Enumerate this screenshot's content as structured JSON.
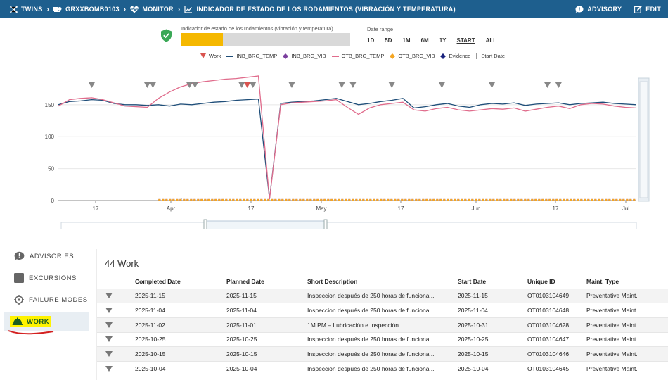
{
  "breadcrumb": [
    {
      "label": "TWINS",
      "icon": "network-icon"
    },
    {
      "label": "GRXXBOMB0103",
      "icon": "pump-icon"
    },
    {
      "label": "MONITOR",
      "icon": "heart-pulse-icon"
    },
    {
      "label": "INDICADOR DE ESTADO DE LOS RODAMIENTOS (VIBRACIÓN Y TEMPERATURA)",
      "icon": "line-chart-icon"
    }
  ],
  "top_actions": {
    "advisory": "ADVISORY",
    "edit": "EDIT"
  },
  "indicator": {
    "label": "Indicador de estado de los rodamientos (vibración y temperatura)",
    "fill_fraction": 0.25,
    "color": "#f5b800",
    "status_icon": "check-shield-icon"
  },
  "date_range": {
    "label": "Date range",
    "options": [
      "1D",
      "5D",
      "1M",
      "6M",
      "1Y",
      "START",
      "ALL"
    ],
    "selected": "START"
  },
  "legend": [
    {
      "name": "Work",
      "color": "#d9534f",
      "marker": "triangle-down"
    },
    {
      "name": "INB_BRG_TEMP",
      "color": "#1f4e79",
      "marker": "line"
    },
    {
      "name": "INB_BRG_VIB",
      "color": "#7b3f9e",
      "marker": "diamond"
    },
    {
      "name": "OTB_BRG_TEMP",
      "color": "#e06c8c",
      "marker": "line"
    },
    {
      "name": "OTB_BRG_VIB",
      "color": "#f5a623",
      "marker": "diamond"
    },
    {
      "name": "Evidence",
      "color": "#1a237e",
      "marker": "diamond"
    },
    {
      "name": "Start Date",
      "color": "#999999",
      "marker": "bar"
    }
  ],
  "chart_data": {
    "type": "line",
    "yticks": [
      0,
      50,
      100,
      150
    ],
    "ylim": [
      0,
      195
    ],
    "xticks": [
      "17",
      "Apr",
      "17",
      "May",
      "17",
      "Jun",
      "17",
      "Jul"
    ],
    "series": [
      {
        "name": "INB_BRG_TEMP",
        "color": "#1f4e79",
        "values": [
          150,
          155,
          156,
          158,
          157,
          152,
          150,
          150,
          149,
          150,
          148,
          151,
          150,
          152,
          154,
          155,
          157,
          158,
          159,
          3,
          152,
          154,
          155,
          156,
          158,
          160,
          155,
          150,
          152,
          155,
          157,
          160,
          145,
          147,
          150,
          152,
          148,
          146,
          150,
          152,
          151,
          153,
          149,
          151,
          152,
          153,
          150,
          152,
          153,
          154,
          152,
          151,
          150
        ]
      },
      {
        "name": "OTB_BRG_TEMP",
        "color": "#e06c8c",
        "values": [
          148,
          158,
          160,
          161,
          158,
          153,
          148,
          147,
          146,
          160,
          170,
          178,
          183,
          186,
          188,
          190,
          191,
          193,
          195,
          2,
          150,
          153,
          154,
          155,
          156,
          158,
          146,
          135,
          145,
          150,
          152,
          154,
          142,
          140,
          144,
          146,
          142,
          140,
          142,
          144,
          143,
          145,
          140,
          143,
          146,
          148,
          144,
          150,
          152,
          151,
          148,
          146,
          145
        ]
      },
      {
        "name": "INB_BRG_VIB",
        "color": "#7b3f9e",
        "values": [
          null,
          null,
          null,
          null,
          null,
          null,
          null,
          null,
          null,
          1,
          1,
          1,
          1,
          1,
          1,
          1,
          1,
          1,
          1,
          1,
          1,
          1,
          1,
          1,
          1,
          1,
          1,
          1,
          1,
          1,
          1,
          1,
          1,
          1,
          1,
          1,
          1,
          1,
          1,
          1,
          1,
          1,
          1,
          1,
          1,
          1,
          1,
          1,
          1,
          1,
          1,
          1,
          1
        ]
      },
      {
        "name": "OTB_BRG_VIB",
        "color": "#f5a623",
        "values": [
          null,
          null,
          null,
          null,
          null,
          null,
          null,
          null,
          null,
          1,
          1,
          1,
          1,
          1,
          1,
          1,
          1,
          1,
          1,
          1,
          1,
          1,
          1,
          1,
          1,
          1,
          1,
          1,
          1,
          1,
          1,
          1,
          1,
          1,
          1,
          1,
          1,
          1,
          1,
          1,
          1,
          1,
          1,
          1,
          1,
          1,
          1,
          1,
          1,
          1,
          1,
          1,
          1
        ]
      }
    ],
    "work_markers": [
      3,
      8,
      8.5,
      11.8,
      12.3,
      16.5,
      17,
      17.5,
      21,
      25.5,
      26.5,
      30,
      34.5,
      39,
      44,
      45
    ]
  },
  "sidenav": [
    {
      "label": "ADVISORIES",
      "icon": "advisory-icon"
    },
    {
      "label": "EXCURSIONS",
      "icon": "excursion-icon"
    },
    {
      "label": "FAILURE MODES",
      "icon": "crosshair-icon"
    },
    {
      "label": "WORK",
      "icon": "hard-hat-icon",
      "active": true
    }
  ],
  "work": {
    "title": "44 Work",
    "columns": [
      "Completed Date",
      "Planned Date",
      "Short Description",
      "Start Date",
      "Unique ID",
      "Maint. Type"
    ],
    "rows": [
      [
        "2025-11-15",
        "2025-11-15",
        "Inspeccion después de 250 horas de funciona...",
        "2025-11-15",
        "OT0103104649",
        "Preventative Maint."
      ],
      [
        "2025-11-04",
        "2025-11-04",
        "Inspeccion después de 250 horas de funciona...",
        "2025-11-04",
        "OT0103104648",
        "Preventative Maint."
      ],
      [
        "2025-11-02",
        "2025-11-01",
        "1M PM – Lubricación e Inspección",
        "2025-10-31",
        "OT0103104628",
        "Preventative Maint."
      ],
      [
        "2025-10-25",
        "2025-10-25",
        "Inspeccion después de 250 horas de funciona...",
        "2025-10-25",
        "OT0103104647",
        "Preventative Maint."
      ],
      [
        "2025-10-15",
        "2025-10-15",
        "Inspeccion después de 250 horas de funciona...",
        "2025-10-15",
        "OT0103104646",
        "Preventative Maint."
      ],
      [
        "2025-10-04",
        "2025-10-04",
        "Inspeccion después de 250 horas de funciona...",
        "2025-10-04",
        "OT0103104645",
        "Preventative Maint."
      ]
    ]
  }
}
